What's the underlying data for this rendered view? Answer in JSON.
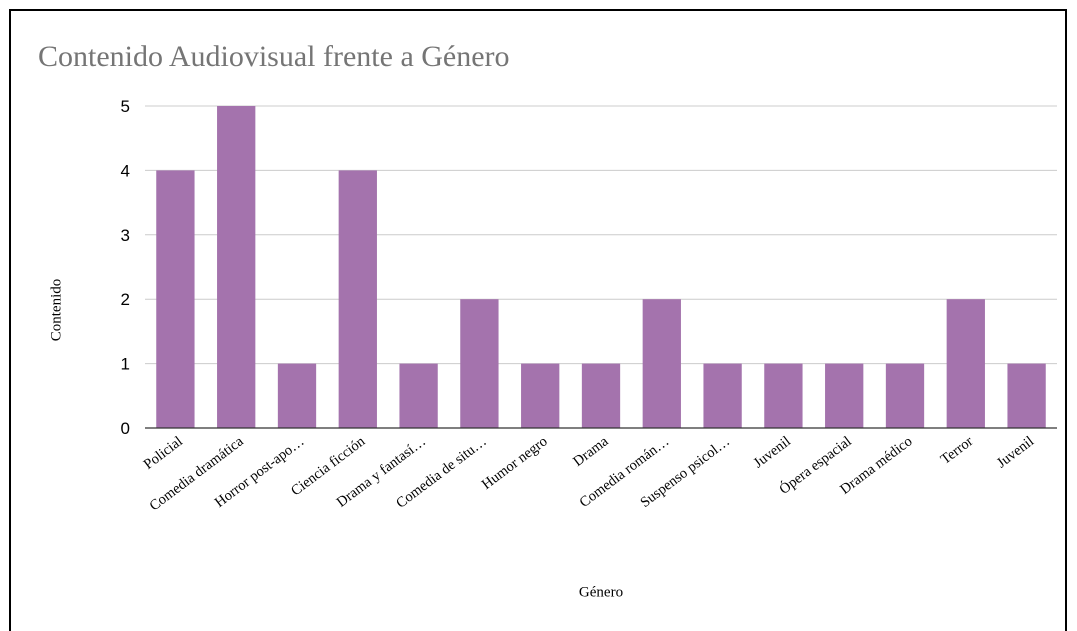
{
  "chart_data": {
    "type": "bar",
    "title": "Contenido Audiovisual frente a Género",
    "xlabel": "Género",
    "ylabel": "Contenido",
    "categories": [
      "Policial",
      "Comedia dramática",
      "Horror post-apo…",
      "Ciencia ficción",
      "Drama y fantasí…",
      "Comedia de situ…",
      "Humor negro",
      "Drama",
      "Comedia román…",
      "Suspenso psicol…",
      "Juvenil",
      "Ópera espacial",
      "Drama médico",
      "Terror",
      "Juvenil"
    ],
    "values": [
      4,
      5,
      1,
      4,
      1,
      2,
      1,
      1,
      2,
      1,
      1,
      1,
      1,
      2,
      1
    ],
    "ylim": [
      0,
      5
    ],
    "yticks": [
      0,
      1,
      2,
      3,
      4,
      5
    ],
    "grid": true,
    "legend": "none",
    "bar_color": "#a473ad",
    "grid_color": "#cccccc",
    "axis_color": "#333333"
  }
}
